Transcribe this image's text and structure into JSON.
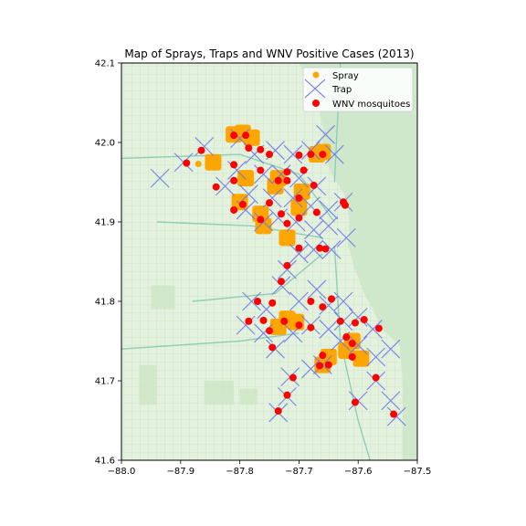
{
  "chart_data": {
    "type": "scatter",
    "title": "Map of Sprays, Traps and WNV Positive Cases (2013)",
    "xlabel": "",
    "ylabel": "",
    "xlim": [
      -88.0,
      -87.5
    ],
    "ylim": [
      41.6,
      42.1
    ],
    "x_ticks": [
      -88.0,
      -87.9,
      -87.8,
      -87.7,
      -87.6,
      -87.5
    ],
    "x_tick_labels": [
      "−88.0",
      "−87.9",
      "−87.8",
      "−87.7",
      "−87.6",
      "−87.5"
    ],
    "y_ticks": [
      41.6,
      41.7,
      41.8,
      41.9,
      42.0,
      42.1
    ],
    "y_tick_labels": [
      "41.6",
      "41.7",
      "41.8",
      "41.9",
      "42.0",
      "42.1"
    ],
    "background": "street map",
    "legend_position": "top-right",
    "series": [
      {
        "name": "Spray",
        "marker": "circle",
        "color": "#ffa500",
        "clusters": [
          [
            -87.81,
            42.01
          ],
          [
            -87.795,
            42.012
          ],
          [
            -87.78,
            42.006
          ],
          [
            -87.845,
            41.975
          ],
          [
            -87.79,
            41.955
          ],
          [
            -87.8,
            41.925
          ],
          [
            -87.765,
            41.91
          ],
          [
            -87.76,
            41.895
          ],
          [
            -87.735,
            41.955
          ],
          [
            -87.74,
            41.945
          ],
          [
            -87.695,
            41.938
          ],
          [
            -87.7,
            41.918
          ],
          [
            -87.72,
            41.88
          ],
          [
            -87.67,
            41.985
          ],
          [
            -87.66,
            41.988
          ],
          [
            -87.72,
            41.778
          ],
          [
            -87.735,
            41.768
          ],
          [
            -87.705,
            41.774
          ],
          [
            -87.65,
            41.73
          ],
          [
            -87.66,
            41.72
          ],
          [
            -87.61,
            41.75
          ],
          [
            -87.595,
            41.728
          ],
          [
            -87.62,
            41.738
          ]
        ],
        "points": [
          [
            -87.87,
            41.973
          ]
        ]
      },
      {
        "name": "Trap",
        "marker": "x",
        "color": "#6b77e8",
        "points": [
          [
            -87.935,
            41.955
          ],
          [
            -87.895,
            41.975
          ],
          [
            -87.86,
            41.995
          ],
          [
            -87.8,
            42.005
          ],
          [
            -87.775,
            41.985
          ],
          [
            -87.74,
            41.99
          ],
          [
            -87.71,
            41.985
          ],
          [
            -87.68,
            41.99
          ],
          [
            -87.655,
            42.01
          ],
          [
            -87.64,
            41.985
          ],
          [
            -87.805,
            41.965
          ],
          [
            -87.76,
            41.96
          ],
          [
            -87.73,
            41.96
          ],
          [
            -87.7,
            41.955
          ],
          [
            -87.67,
            41.945
          ],
          [
            -87.825,
            41.945
          ],
          [
            -87.785,
            41.935
          ],
          [
            -87.745,
            41.93
          ],
          [
            -87.71,
            41.93
          ],
          [
            -87.68,
            41.92
          ],
          [
            -87.65,
            41.915
          ],
          [
            -87.625,
            41.925
          ],
          [
            -87.79,
            41.915
          ],
          [
            -87.76,
            41.9
          ],
          [
            -87.735,
            41.905
          ],
          [
            -87.705,
            41.9
          ],
          [
            -87.675,
            41.89
          ],
          [
            -87.65,
            41.895
          ],
          [
            -87.62,
            41.88
          ],
          [
            -87.645,
            41.865
          ],
          [
            -87.675,
            41.865
          ],
          [
            -87.7,
            41.86
          ],
          [
            -87.72,
            41.84
          ],
          [
            -87.73,
            41.82
          ],
          [
            -87.7,
            41.8
          ],
          [
            -87.67,
            41.815
          ],
          [
            -87.65,
            41.795
          ],
          [
            -87.625,
            41.8
          ],
          [
            -87.78,
            41.8
          ],
          [
            -87.755,
            41.79
          ],
          [
            -87.79,
            41.77
          ],
          [
            -87.76,
            41.76
          ],
          [
            -87.74,
            41.74
          ],
          [
            -87.71,
            41.76
          ],
          [
            -87.68,
            41.77
          ],
          [
            -87.65,
            41.765
          ],
          [
            -87.625,
            41.775
          ],
          [
            -87.6,
            41.78
          ],
          [
            -87.575,
            41.765
          ],
          [
            -87.545,
            41.74
          ],
          [
            -87.57,
            41.73
          ],
          [
            -87.6,
            41.745
          ],
          [
            -87.63,
            41.75
          ],
          [
            -87.66,
            41.72
          ],
          [
            -87.68,
            41.715
          ],
          [
            -87.715,
            41.705
          ],
          [
            -87.72,
            41.68
          ],
          [
            -87.735,
            41.66
          ],
          [
            -87.6,
            41.675
          ],
          [
            -87.57,
            41.7
          ],
          [
            -87.545,
            41.675
          ],
          [
            -87.535,
            41.655
          ]
        ]
      },
      {
        "name": "WNV mosquitoes",
        "marker": "circle",
        "color": "#ff0000",
        "points": [
          [
            -87.89,
            41.974
          ],
          [
            -87.865,
            41.99
          ],
          [
            -87.81,
            42.009
          ],
          [
            -87.79,
            42.009
          ],
          [
            -87.785,
            41.993
          ],
          [
            -87.765,
            41.991
          ],
          [
            -87.75,
            41.985
          ],
          [
            -87.7,
            41.984
          ],
          [
            -87.68,
            41.985
          ],
          [
            -87.66,
            41.985
          ],
          [
            -87.81,
            41.972
          ],
          [
            -87.765,
            41.965
          ],
          [
            -87.72,
            41.963
          ],
          [
            -87.692,
            41.965
          ],
          [
            -87.84,
            41.944
          ],
          [
            -87.81,
            41.952
          ],
          [
            -87.735,
            41.952
          ],
          [
            -87.72,
            41.952
          ],
          [
            -87.675,
            41.946
          ],
          [
            -87.795,
            41.922
          ],
          [
            -87.75,
            41.924
          ],
          [
            -87.7,
            41.93
          ],
          [
            -87.625,
            41.925
          ],
          [
            -87.622,
            41.921
          ],
          [
            -87.81,
            41.915
          ],
          [
            -87.765,
            41.903
          ],
          [
            -87.73,
            41.91
          ],
          [
            -87.72,
            41.898
          ],
          [
            -87.7,
            41.905
          ],
          [
            -87.67,
            41.912
          ],
          [
            -87.7,
            41.867
          ],
          [
            -87.665,
            41.867
          ],
          [
            -87.655,
            41.866
          ],
          [
            -87.72,
            41.845
          ],
          [
            -87.73,
            41.825
          ],
          [
            -87.77,
            41.8
          ],
          [
            -87.745,
            41.798
          ],
          [
            -87.68,
            41.8
          ],
          [
            -87.66,
            41.793
          ],
          [
            -87.645,
            41.803
          ],
          [
            -87.785,
            41.775
          ],
          [
            -87.76,
            41.776
          ],
          [
            -87.725,
            41.775
          ],
          [
            -87.7,
            41.77
          ],
          [
            -87.68,
            41.767
          ],
          [
            -87.63,
            41.775
          ],
          [
            -87.605,
            41.773
          ],
          [
            -87.59,
            41.777
          ],
          [
            -87.565,
            41.766
          ],
          [
            -87.75,
            41.763
          ],
          [
            -87.745,
            41.742
          ],
          [
            -87.62,
            41.755
          ],
          [
            -87.61,
            41.747
          ],
          [
            -87.66,
            41.732
          ],
          [
            -87.665,
            41.719
          ],
          [
            -87.65,
            41.72
          ],
          [
            -87.61,
            41.73
          ],
          [
            -87.71,
            41.704
          ],
          [
            -87.57,
            41.704
          ],
          [
            -87.72,
            41.682
          ],
          [
            -87.735,
            41.662
          ],
          [
            -87.605,
            41.673
          ],
          [
            -87.54,
            41.658
          ]
        ]
      }
    ]
  },
  "colors": {
    "map_water": "#cfe8cc",
    "map_land": "#e6f3e1",
    "map_roads": "#b8dcc6",
    "map_highways": "#8fcfb5",
    "legend_bg": "#ffffff"
  }
}
